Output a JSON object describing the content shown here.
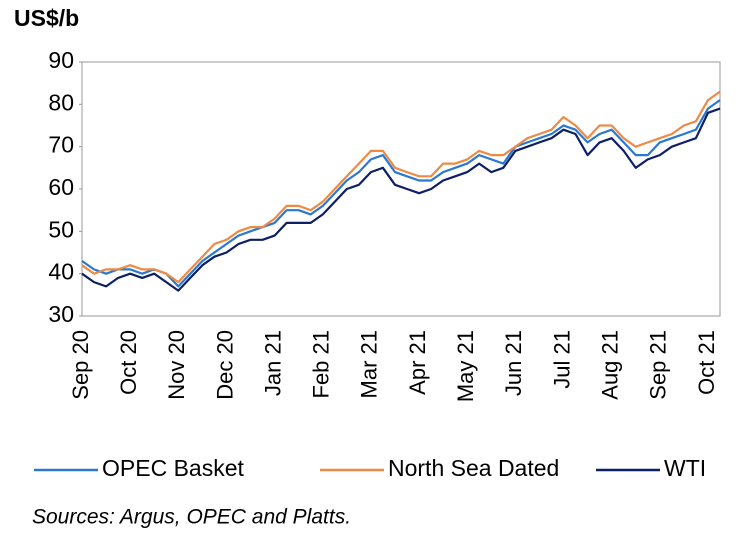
{
  "chart_data": {
    "type": "line",
    "title": "US$/b",
    "source": "Sources: Argus, OPEC and Platts.",
    "categories": [
      "Sep 20",
      null,
      null,
      null,
      "Oct 20",
      null,
      null,
      null,
      "Nov 20",
      null,
      null,
      null,
      "Dec 20",
      null,
      null,
      null,
      "Jan 21",
      null,
      null,
      null,
      "Feb 21",
      null,
      null,
      null,
      "Mar 21",
      null,
      null,
      null,
      "Apr 21",
      null,
      null,
      null,
      "May 21",
      null,
      null,
      null,
      "Jun 21",
      null,
      null,
      null,
      "Jul 21",
      null,
      null,
      null,
      "Aug 21",
      null,
      null,
      null,
      "Sep 21",
      null,
      null,
      null,
      "Oct 21",
      null
    ],
    "series": [
      {
        "name": "OPEC Basket",
        "color": "#2a78d0",
        "values": [
          43,
          41,
          40,
          41,
          41,
          40,
          41,
          40,
          37,
          40,
          43,
          45,
          47,
          49,
          50,
          51,
          52,
          55,
          55,
          54,
          56,
          59,
          62,
          64,
          67,
          68,
          64,
          63,
          62,
          62,
          64,
          65,
          66,
          68,
          67,
          66,
          70,
          71,
          72,
          73,
          75,
          74,
          71,
          73,
          74,
          71,
          68,
          68,
          71,
          72,
          73,
          74,
          79,
          81
        ]
      },
      {
        "name": "North Sea Dated",
        "color": "#ed8a45",
        "values": [
          42,
          40,
          41,
          41,
          42,
          41,
          41,
          40,
          38,
          41,
          44,
          47,
          48,
          50,
          51,
          51,
          53,
          56,
          56,
          55,
          57,
          60,
          63,
          66,
          69,
          69,
          65,
          64,
          63,
          63,
          66,
          66,
          67,
          69,
          68,
          68,
          70,
          72,
          73,
          74,
          77,
          75,
          72,
          75,
          75,
          72,
          70,
          71,
          72,
          73,
          75,
          76,
          81,
          83
        ]
      },
      {
        "name": "WTI",
        "color": "#0d1f66",
        "values": [
          40,
          38,
          37,
          39,
          40,
          39,
          40,
          38,
          36,
          39,
          42,
          44,
          45,
          47,
          48,
          48,
          49,
          52,
          52,
          52,
          54,
          57,
          60,
          61,
          64,
          65,
          61,
          60,
          59,
          60,
          62,
          63,
          64,
          66,
          64,
          65,
          69,
          70,
          71,
          72,
          74,
          73,
          68,
          71,
          72,
          69,
          65,
          67,
          68,
          70,
          71,
          72,
          78,
          79
        ]
      }
    ],
    "ylim": [
      30,
      90
    ],
    "yticks": [
      30,
      40,
      50,
      60,
      70,
      80,
      90
    ],
    "grid": false
  }
}
